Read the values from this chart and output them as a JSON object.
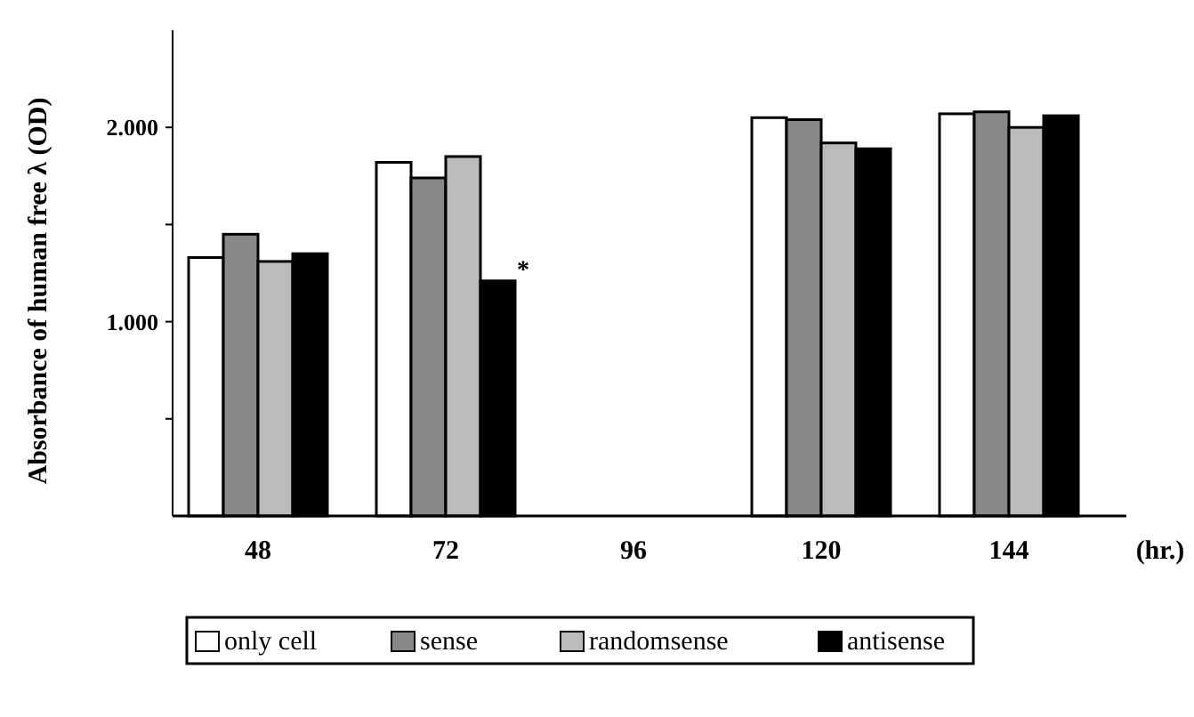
{
  "chart_data": {
    "type": "bar",
    "ylabel": "Absorbance of human free λ (OD)",
    "xlabel": "(hr.)",
    "categories": [
      "48",
      "72",
      "96",
      "120",
      "144"
    ],
    "series": [
      {
        "name": "only cell",
        "color": "#ffffff",
        "values": [
          1.33,
          1.82,
          null,
          2.05,
          2.07
        ]
      },
      {
        "name": "sense",
        "color": "#888888",
        "values": [
          1.45,
          1.74,
          null,
          2.04,
          2.08
        ]
      },
      {
        "name": "randomsense",
        "color": "#bbbbbb",
        "values": [
          1.31,
          1.85,
          null,
          1.92,
          2.0
        ]
      },
      {
        "name": "antisense",
        "color": "#000000",
        "values": [
          1.35,
          1.21,
          null,
          1.89,
          2.06
        ]
      }
    ],
    "ylim": [
      0,
      2.5
    ],
    "yticks": [
      {
        "value": 0.5,
        "label": null
      },
      {
        "value": 1,
        "label": "1.000"
      },
      {
        "value": 1.5,
        "label": null
      },
      {
        "value": 2,
        "label": "2.000"
      }
    ],
    "annotations": [
      {
        "text": "*",
        "x": "72",
        "y": 1.21
      }
    ],
    "legend": "bottom",
    "grid": false
  }
}
